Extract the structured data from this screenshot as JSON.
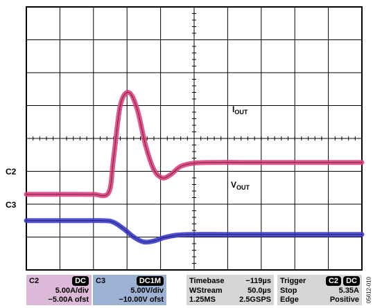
{
  "scope": {
    "divisions": {
      "x": 10,
      "y": 8
    },
    "channel_markers": {
      "c2": "C2",
      "c3": "C3"
    },
    "signal_labels": {
      "iout": {
        "main": "I",
        "sub": "OUT"
      },
      "vout": {
        "main": "V",
        "sub": "OUT"
      }
    },
    "colors": {
      "c2_trace": "#e0407f",
      "c3_trace": "#3c3cd0",
      "c2_panel": "#dcb9d8",
      "c3_panel": "#9db1d2",
      "info_panel": "#d6d6d6",
      "grid": "#000000"
    }
  },
  "chart_data": {
    "type": "line",
    "x_divisions": 10,
    "y_divisions": 8,
    "series": [
      {
        "name": "IOUT",
        "x": [
          0,
          1.5,
          2.0,
          2.45,
          2.6,
          2.8,
          3.05,
          3.3,
          3.55,
          3.8,
          4.05,
          4.3,
          4.6,
          5.0,
          5.6,
          6.5,
          8.0,
          10
        ],
        "y": [
          2.3,
          2.3,
          2.3,
          2.35,
          3.4,
          5.0,
          5.4,
          4.9,
          3.8,
          3.05,
          2.8,
          2.9,
          3.15,
          3.25,
          3.27,
          3.27,
          3.27,
          3.27
        ]
      },
      {
        "name": "VOUT",
        "x": [
          0,
          1.5,
          2.3,
          2.6,
          2.9,
          3.2,
          3.5,
          3.8,
          4.1,
          4.5,
          5.0,
          6.0,
          8.0,
          10
        ],
        "y": [
          1.5,
          1.5,
          1.5,
          1.45,
          1.25,
          1.0,
          0.85,
          0.88,
          0.98,
          1.06,
          1.08,
          1.08,
          1.08,
          1.08
        ]
      }
    ],
    "annotations": [
      "IOUT",
      "VOUT",
      "C2",
      "C3"
    ]
  },
  "panels": {
    "c2": {
      "label": "C2",
      "coupling": "DC",
      "scale": "5.00A/div",
      "offset": "−5.00A ofst"
    },
    "c3": {
      "label": "C3",
      "coupling": "DC1M",
      "scale": "5.00V/div",
      "offset": "−10.00V ofst"
    },
    "timebase": {
      "label": "Timebase",
      "value": "−119µs",
      "mode": "WStream",
      "time_div": "50.0µs",
      "samples": "1.25MS",
      "rate": "2.5GSPS"
    },
    "trigger": {
      "label": "Trigger",
      "channel": "C2",
      "coupling": "DC",
      "state": "Stop",
      "level": "5.35A",
      "type": "Edge",
      "slope": "Positive"
    }
  },
  "figure_code": "05612-010"
}
